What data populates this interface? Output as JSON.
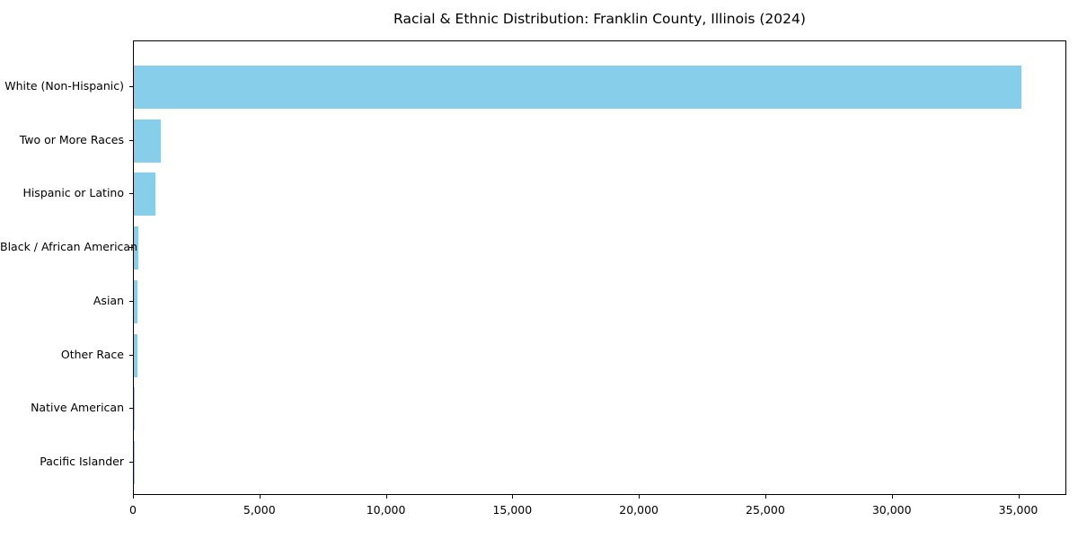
{
  "title": "Racial & Ethnic Distribution: Franklin County, Illinois (2024)",
  "chart_data": {
    "type": "bar",
    "orientation": "horizontal",
    "title": "Racial & Ethnic Distribution: Franklin County, Illinois (2024)",
    "xlabel": "",
    "ylabel": "",
    "categories": [
      "White (Non-Hispanic)",
      "Two or More Races",
      "Hispanic or Latino",
      "Black / African American",
      "Asian",
      "Other Race",
      "Native American",
      "Pacific Islander"
    ],
    "values": [
      35100,
      1070,
      850,
      180,
      150,
      130,
      30,
      10
    ],
    "bar_color": "#87CEEB",
    "xlim": [
      0,
      36900
    ],
    "xticks": [
      0,
      5000,
      10000,
      15000,
      20000,
      25000,
      30000,
      35000
    ],
    "xtick_labels": [
      "0",
      "5,000",
      "10,000",
      "15,000",
      "20,000",
      "25,000",
      "30,000",
      "35,000"
    ],
    "grid": false,
    "legend_position": "none"
  }
}
